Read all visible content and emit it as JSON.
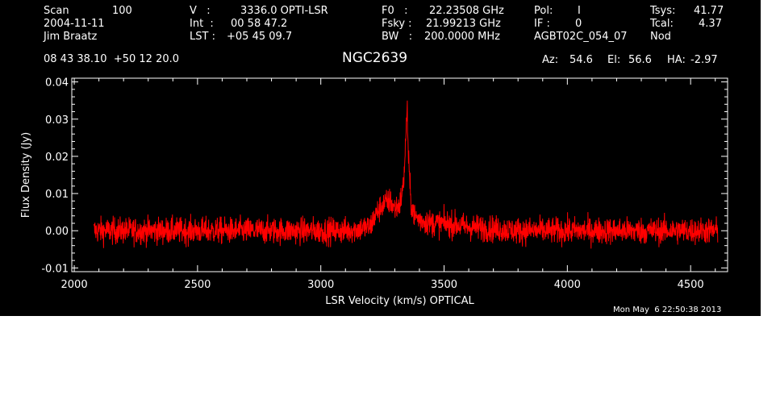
{
  "header": {
    "scan_label": "Scan",
    "scan_value": "100",
    "date": "2004-11-11",
    "observer": "Jim Braatz",
    "v_label": "V   :",
    "v_value": "3336.0 OPTI-LSR",
    "int_label": "Int  :",
    "int_value": "00 58 47.2",
    "lst_label": "LST :",
    "lst_value": "+05 45 09.7",
    "f0_label": "F0   :",
    "f0_value": "22.23508 GHz",
    "fsky_label": "Fsky :",
    "fsky_value": "21.99213 GHz",
    "bw_label": "BW   :",
    "bw_value": "200.0000 MHz",
    "pol_label": "Pol:",
    "pol_value": "I",
    "if_label": "IF :",
    "if_value": "0",
    "project": "AGBT02C_054_07",
    "tsys_label": "Tsys:",
    "tsys_value": "41.77",
    "tcal_label": "Tcal:",
    "tcal_value": "4.37",
    "mode": "Nod",
    "coords": "08 43 38.10  +50 12 20.0",
    "object": "NGC2639",
    "az_label": "Az:",
    "az_value": "54.6",
    "el_label": "El:",
    "el_value": "56.6",
    "ha_label": "HA:",
    "ha_value": "-2.97"
  },
  "timestamp": "Mon May  6 22:50:38 2013",
  "colors": {
    "background": "#000000",
    "axes": "#ffffff",
    "spectrum": "#ff0000"
  },
  "chart_data": {
    "type": "line",
    "title": "NGC2639",
    "xlabel": "LSR Velocity (km/s) OPTICAL",
    "ylabel": "Flux Density (Jy)",
    "xlim": [
      1990,
      4650
    ],
    "ylim": [
      -0.011,
      0.041
    ],
    "xticks": [
      2000,
      2500,
      3000,
      3500,
      4000,
      4500
    ],
    "xtick_labels": [
      "2000",
      "2500",
      "3000",
      "3500",
      "4000",
      "4500"
    ],
    "yticks": [
      -0.01,
      0.0,
      0.01,
      0.02,
      0.03,
      0.04
    ],
    "ytick_labels": [
      "-0.01",
      "0.00",
      "0.01",
      "0.02",
      "0.03",
      "0.04"
    ],
    "grid": false,
    "series": [
      {
        "x_range": [
          2080,
          4610
        ],
        "x": [
          2080,
          2200,
          2400,
          2600,
          2800,
          3000,
          3100,
          3150,
          3200,
          3220,
          3250,
          3280,
          3300,
          3320,
          3335,
          3345,
          3350,
          3355,
          3365,
          3380,
          3400,
          3450,
          3500,
          3600,
          3800,
          4000,
          4200,
          4400,
          4610
        ],
        "y": [
          0.0,
          0.0,
          0.0,
          0.0,
          0.0,
          0.0,
          0.0,
          0.0005,
          0.001,
          0.004,
          0.007,
          0.008,
          0.006,
          0.007,
          0.012,
          0.025,
          0.034,
          0.02,
          0.008,
          0.004,
          0.003,
          0.002,
          0.002,
          0.001,
          0.0,
          0.0,
          0.0,
          0.0,
          0.0
        ],
        "noise_rms": 0.0025
      }
    ]
  }
}
